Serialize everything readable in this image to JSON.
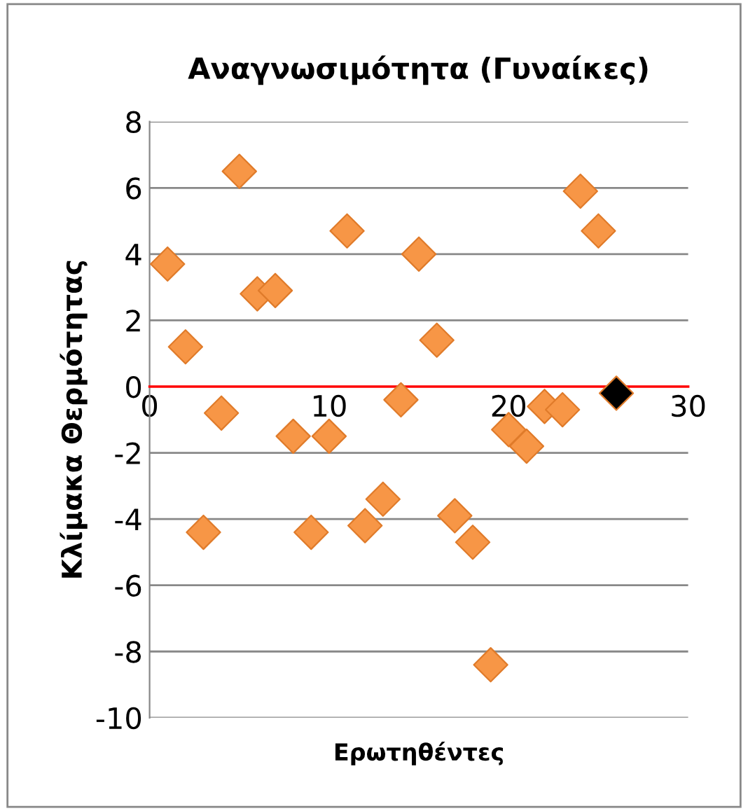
{
  "chart_data": {
    "type": "scatter",
    "title": "Αναγνωσιμότητα (Γυναίκες)",
    "xlabel": "Ερωτηθέντες",
    "ylabel": "Κλίμακα Θερμότητας",
    "x": [
      1,
      2,
      3,
      4,
      5,
      6,
      7,
      8,
      9,
      10,
      11,
      12,
      13,
      14,
      15,
      16,
      17,
      18,
      19,
      20,
      21,
      22,
      23,
      24,
      25,
      26
    ],
    "values": [
      3.7,
      1.2,
      -4.4,
      -0.8,
      6.5,
      2.8,
      2.9,
      -1.5,
      -4.4,
      -1.5,
      4.7,
      -4.2,
      -3.4,
      -0.4,
      4.0,
      1.4,
      -3.9,
      -4.7,
      -8.4,
      -1.3,
      -1.8,
      -0.6,
      -0.7,
      5.9,
      4.7,
      -0.2
    ],
    "colors": [
      "#f79646",
      "#f79646",
      "#f79646",
      "#f79646",
      "#f79646",
      "#f79646",
      "#f79646",
      "#f79646",
      "#f79646",
      "#f79646",
      "#f79646",
      "#f79646",
      "#f79646",
      "#f79646",
      "#f79646",
      "#f79646",
      "#f79646",
      "#f79646",
      "#f79646",
      "#f79646",
      "#f79646",
      "#f79646",
      "#f79646",
      "#f79646",
      "#f79646",
      "#000000"
    ],
    "xlim": [
      0,
      30
    ],
    "xticks": [
      0,
      10,
      20,
      30
    ],
    "ylim": [
      -10,
      8
    ],
    "yticks": [
      -10,
      -8,
      -6,
      -4,
      -2,
      0,
      2,
      4,
      6,
      8
    ],
    "grid": "y",
    "marker": "diamond",
    "legend": false
  }
}
